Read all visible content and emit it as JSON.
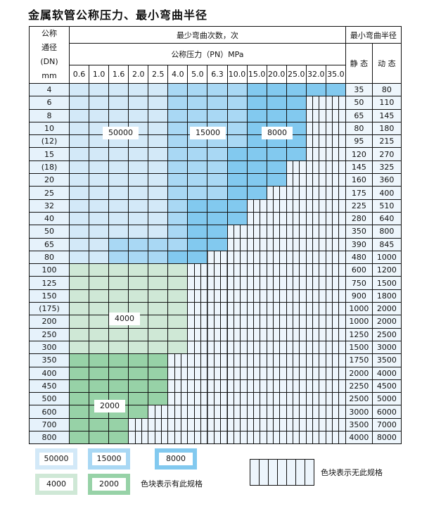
{
  "title": "金属软管公称压力、最小弯曲半径",
  "header": {
    "dn_label": [
      "公称",
      "通径",
      "(DN)",
      "mm"
    ],
    "bend_count": "最少弯曲次数，次",
    "pressure": "公称压力（PN）MPa",
    "min_radius": "最小弯曲半径",
    "static": "静 态",
    "dynamic": "动 态",
    "pressures": [
      "0.6",
      "1.0",
      "1.6",
      "2.0",
      "2.5",
      "4.0",
      "5.0",
      "6.3",
      "10.0",
      "15.0",
      "20.0",
      "25.0",
      "32.0",
      "35.0"
    ]
  },
  "colors": {
    "1": "#d3e9f8",
    "2": "#a9d8f4",
    "3": "#82c9ef",
    "4": "#cfe8d6",
    "5": "#97d2a7",
    "0": "#edf5fc"
  },
  "levels": {
    "1": "50000",
    "2": "15000",
    "3": "8000",
    "4": "4000",
    "5": "2000"
  },
  "rows": [
    {
      "dn": "4",
      "s": "35",
      "d": "80",
      "cells": "11111222233333"
    },
    {
      "dn": "6",
      "s": "50",
      "d": "110",
      "cells": "11111222233300"
    },
    {
      "dn": "8",
      "s": "65",
      "d": "145",
      "cells": "11111222233300"
    },
    {
      "dn": "10",
      "s": "80",
      "d": "180",
      "cells": "11111222233300"
    },
    {
      "dn": "(12)",
      "s": "95",
      "d": "215",
      "cells": "11111222233300"
    },
    {
      "dn": "15",
      "s": "120",
      "d": "270",
      "cells": "11111222333300"
    },
    {
      "dn": "(18)",
      "s": "145",
      "d": "325",
      "cells": "11111222333000"
    },
    {
      "dn": "20",
      "s": "160",
      "d": "360",
      "cells": "11111222333000"
    },
    {
      "dn": "25",
      "s": "175",
      "d": "400",
      "cells": "11111222330000"
    },
    {
      "dn": "32",
      "s": "225",
      "d": "510",
      "cells": "11111233300000"
    },
    {
      "dn": "40",
      "s": "280",
      "d": "640",
      "cells": "11111233300000"
    },
    {
      "dn": "50",
      "s": "350",
      "d": "800",
      "cells": "11111233000000"
    },
    {
      "dn": "65",
      "s": "390",
      "d": "845",
      "cells": "11222233000000"
    },
    {
      "dn": "80",
      "s": "480",
      "d": "1000",
      "cells": "11222330000000"
    },
    {
      "dn": "100",
      "s": "600",
      "d": "1200",
      "cells": "44444400000000"
    },
    {
      "dn": "125",
      "s": "750",
      "d": "1500",
      "cells": "44444400000000"
    },
    {
      "dn": "150",
      "s": "900",
      "d": "1800",
      "cells": "44444400000000"
    },
    {
      "dn": "(175)",
      "s": "1000",
      "d": "2000",
      "cells": "44444400000000"
    },
    {
      "dn": "200",
      "s": "1000",
      "d": "2000",
      "cells": "44444400000000"
    },
    {
      "dn": "250",
      "s": "1250",
      "d": "2500",
      "cells": "44444400000000"
    },
    {
      "dn": "300",
      "s": "1500",
      "d": "3000",
      "cells": "44444400000000"
    },
    {
      "dn": "350",
      "s": "1750",
      "d": "3500",
      "cells": "55555000000000"
    },
    {
      "dn": "400",
      "s": "2000",
      "d": "4000",
      "cells": "55555000000000"
    },
    {
      "dn": "450",
      "s": "2250",
      "d": "4500",
      "cells": "55555000000000"
    },
    {
      "dn": "500",
      "s": "2500",
      "d": "5000",
      "cells": "55555000000000"
    },
    {
      "dn": "600",
      "s": "3000",
      "d": "6000",
      "cells": "55550000000000"
    },
    {
      "dn": "700",
      "s": "3500",
      "d": "7000",
      "cells": "55500000000000"
    },
    {
      "dn": "800",
      "s": "4000",
      "d": "8000",
      "cells": "55500000000000"
    }
  ],
  "legend": {
    "items": [
      "50000",
      "15000",
      "8000",
      "4000",
      "2000"
    ],
    "has_spec": "色块表示有此规格",
    "no_spec": "色块表示无此规格"
  }
}
